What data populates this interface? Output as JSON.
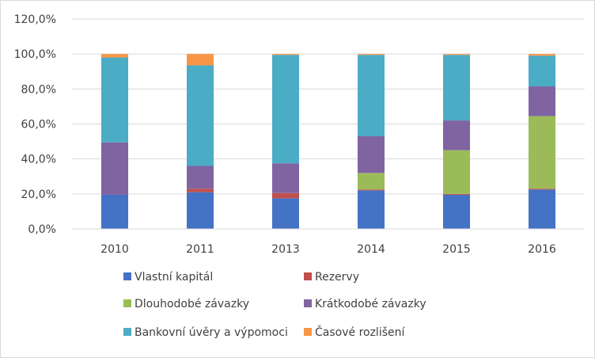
{
  "chart_data": {
    "type": "bar",
    "stacked": true,
    "categories": [
      "2010",
      "2011",
      "2013",
      "2014",
      "2015",
      "2016"
    ],
    "series": [
      {
        "name": "Vlastní kapitál",
        "color": "#4472c4",
        "values": [
          19.5,
          21.0,
          17.5,
          22.0,
          19.5,
          22.5
        ]
      },
      {
        "name": "Rezervy",
        "color": "#c0504d",
        "values": [
          0.0,
          2.0,
          3.0,
          0.5,
          0.5,
          0.5
        ]
      },
      {
        "name": "Dlouhodobé závazky",
        "color": "#9bbb59",
        "values": [
          0.0,
          0.0,
          0.0,
          9.5,
          25.0,
          41.5
        ]
      },
      {
        "name": "Krátkodobé závazky",
        "color": "#8064a2",
        "values": [
          30.0,
          13.0,
          17.0,
          21.0,
          17.0,
          17.0
        ]
      },
      {
        "name": "Bankovní úvěry a výpomoci",
        "color": "#4bacc6",
        "values": [
          48.5,
          57.5,
          62.0,
          46.5,
          37.5,
          17.5
        ]
      },
      {
        "name": "Časové rozlišení",
        "color": "#f79646",
        "values": [
          2.0,
          6.5,
          0.5,
          0.5,
          0.5,
          1.0
        ]
      }
    ],
    "y_ticks": [
      "0,0%",
      "20,0%",
      "40,0%",
      "60,0%",
      "80,0%",
      "100,0%",
      "120,0%"
    ],
    "ylim": [
      0,
      120
    ],
    "grid": true,
    "legend_position": "bottom",
    "title": "",
    "xlabel": "",
    "ylabel": ""
  }
}
